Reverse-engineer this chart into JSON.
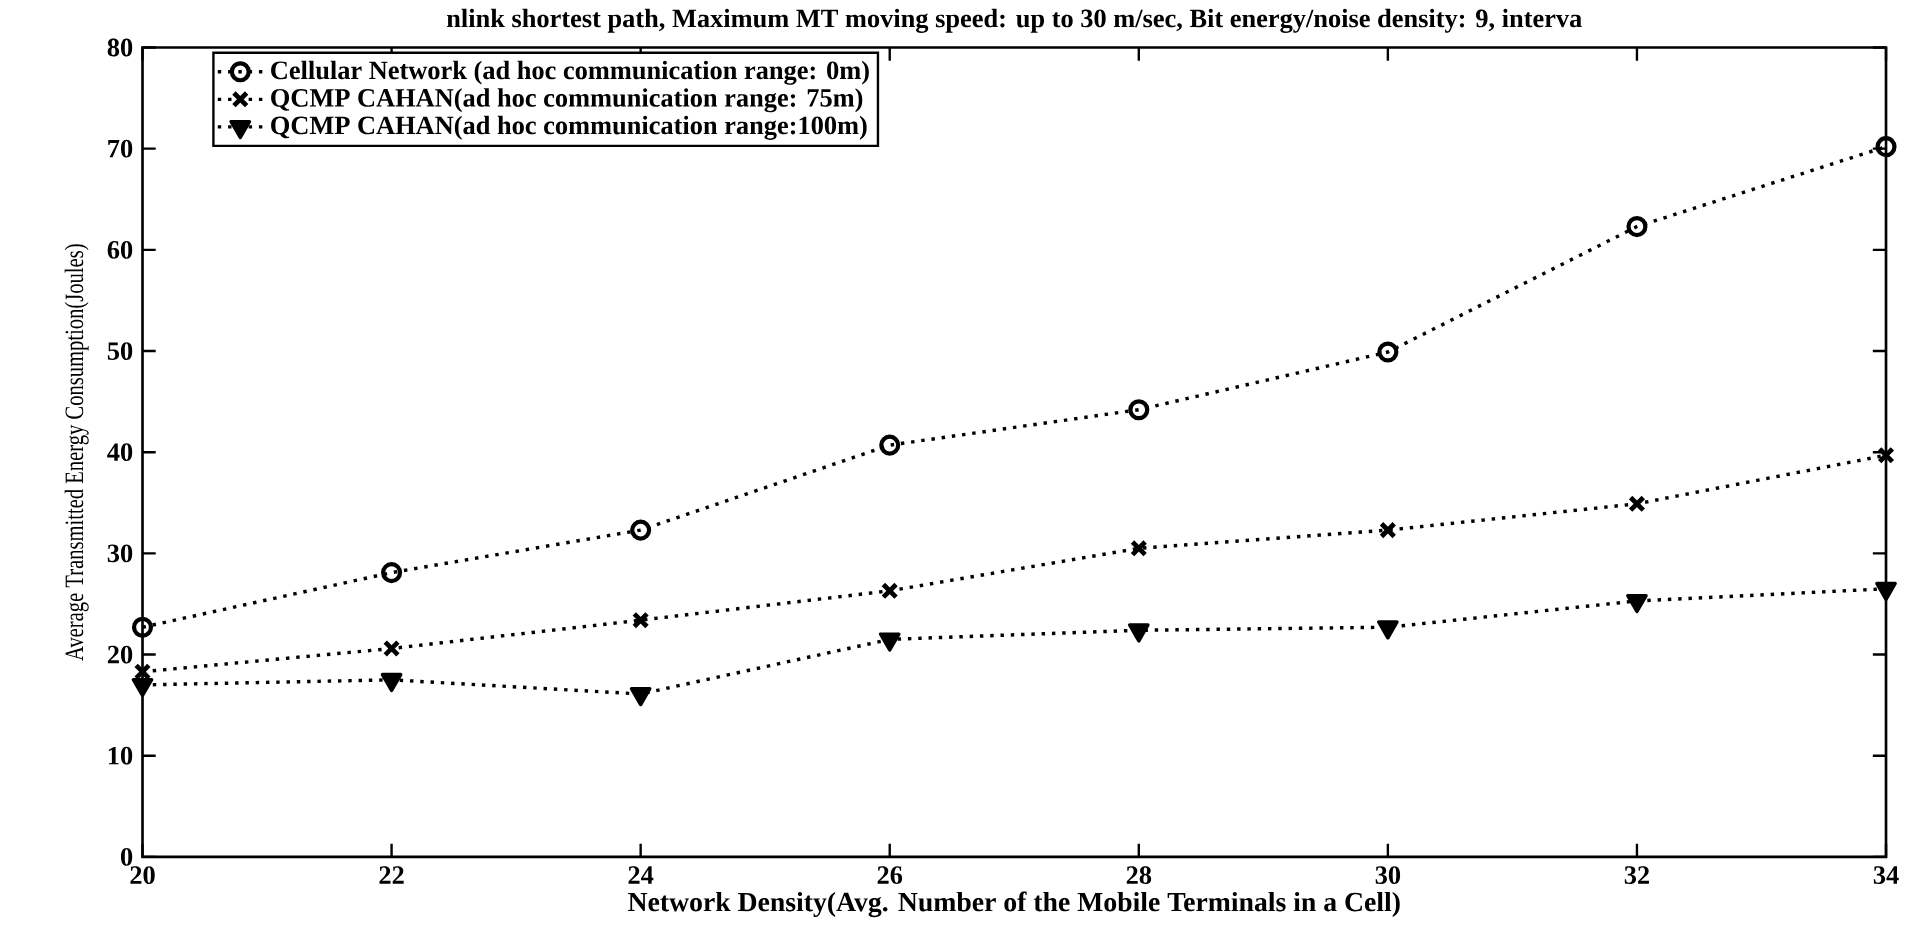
{
  "chart_data": {
    "type": "line",
    "title": "nlink shortest path, Maximum MT moving speed: up to 30 m/sec, Bit energy/noise density: 9, interva",
    "xlabel": "Network Density(Avg. Number of the Mobile Terminals in a Cell)",
    "ylabel": "Average Transmitted Energy Consumption(Joules)",
    "x": [
      20,
      22,
      24,
      26,
      28,
      30,
      32,
      34
    ],
    "xlim": [
      20,
      34
    ],
    "ylim": [
      0,
      80
    ],
    "xticks": [
      20,
      22,
      24,
      26,
      28,
      30,
      32,
      34
    ],
    "yticks": [
      0,
      10,
      20,
      30,
      40,
      50,
      60,
      70,
      80
    ],
    "legend": "top left",
    "series": [
      {
        "name": "Cellular Network (ad hoc communication range:    0m)",
        "color": "#000000",
        "marker": "circle",
        "line_style": "dotted",
        "values": [
          22.7,
          28.1,
          32.3,
          40.7,
          44.2,
          49.9,
          62.3,
          70.2
        ]
      },
      {
        "name": "QCMP  CAHAN(ad hoc communication range: 75m)",
        "color": "#000000",
        "marker": "cross",
        "line_style": "dotted",
        "values": [
          18.3,
          20.6,
          23.4,
          26.3,
          30.5,
          32.3,
          34.9,
          39.7
        ]
      },
      {
        "name": "QCMP  CAHAN(ad hoc communication range:100m)",
        "color": "#000000",
        "marker": "triangle",
        "line_style": "dotted",
        "values": [
          17.0,
          17.5,
          16.1,
          21.5,
          22.4,
          22.7,
          25.3,
          26.5
        ]
      }
    ]
  }
}
